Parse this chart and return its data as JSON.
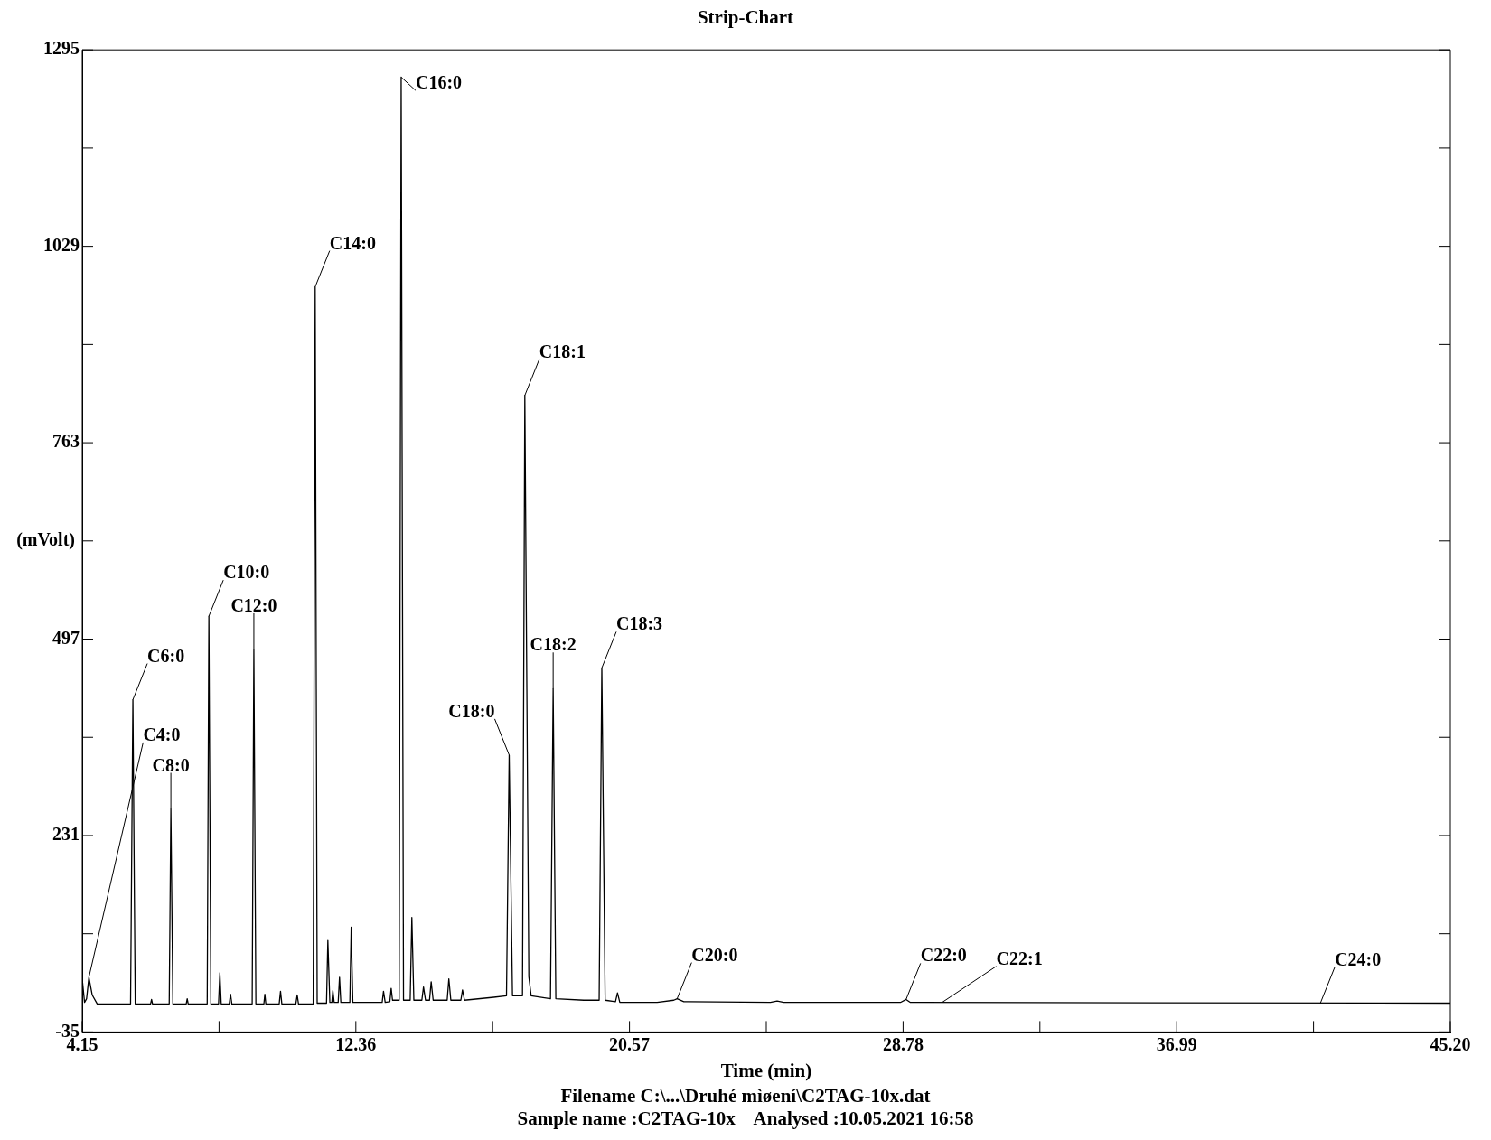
{
  "chart_data": {
    "type": "line",
    "title": "Strip-Chart",
    "xlabel": "Time (min)",
    "ylabel": "(mVolt)",
    "color": "#000000",
    "grid": false,
    "legend": false,
    "marker": "none",
    "line_style": "solid",
    "xlim": [
      4.15,
      45.2
    ],
    "xticks": [
      4.15,
      {
        "value": 8.255,
        "label": null
      },
      12.36,
      {
        "value": 16.465,
        "label": null
      },
      20.57,
      {
        "value": 24.675,
        "label": null
      },
      28.78,
      {
        "value": 32.885,
        "label": null
      },
      36.99,
      {
        "value": 41.095,
        "label": null
      },
      {
        "value": 45.2,
        "label": "45.20"
      }
    ],
    "ylim": [
      -35,
      1295
    ],
    "yticks": [
      -35,
      {
        "value": 98,
        "label": null
      },
      231,
      {
        "value": 364,
        "label": null
      },
      497,
      {
        "value": 630,
        "label": null
      },
      763,
      {
        "value": 896,
        "label": null
      },
      1029,
      {
        "value": 1162,
        "label": null
      },
      1295
    ],
    "x": [
      4.15,
      4.22,
      4.28,
      4.35,
      4.45,
      4.6,
      5.6,
      5.67,
      5.74,
      6.2,
      6.23,
      6.26,
      6.76,
      6.81,
      6.87,
      7.27,
      7.3,
      7.33,
      7.9,
      7.95,
      8.01,
      8.24,
      8.28,
      8.32,
      8.56,
      8.6,
      8.64,
      9.25,
      9.3,
      9.36,
      9.6,
      9.63,
      9.66,
      10.06,
      10.1,
      10.14,
      10.56,
      10.6,
      10.64,
      11.08,
      11.14,
      11.2,
      11.48,
      11.52,
      11.58,
      11.64,
      11.67,
      11.71,
      11.83,
      11.87,
      11.91,
      12.18,
      12.22,
      12.27,
      13.15,
      13.19,
      13.24,
      13.38,
      13.42,
      13.46,
      13.66,
      13.72,
      13.79,
      13.99,
      14.04,
      14.1,
      14.34,
      14.39,
      14.45,
      14.57,
      14.62,
      14.68,
      15.1,
      15.15,
      15.21,
      15.51,
      15.56,
      15.62,
      16.5,
      16.88,
      16.96,
      17.06,
      17.36,
      17.43,
      17.55,
      17.62,
      18.2,
      18.28,
      18.36,
      19.2,
      19.66,
      19.74,
      19.84,
      20.15,
      20.21,
      20.28,
      21.4,
      21.9,
      22.0,
      22.2,
      24.8,
      25.0,
      25.2,
      28.7,
      28.87,
      29.0,
      45.2
    ],
    "values": [
      37,
      5,
      10,
      39,
      15,
      3,
      3,
      415,
      3,
      3,
      9,
      3,
      3,
      267,
      3,
      3,
      10,
      3,
      3,
      528,
      3,
      3,
      45,
      3,
      3,
      16,
      3,
      3,
      483,
      3,
      3,
      16,
      3,
      3,
      20,
      3,
      3,
      15,
      3,
      3,
      974,
      4,
      4,
      89,
      5,
      5,
      21,
      5,
      5,
      39,
      5,
      5,
      107,
      5,
      5,
      20,
      5,
      6,
      24,
      8,
      8,
      1258,
      8,
      8,
      120,
      8,
      8,
      26,
      8,
      8,
      33,
      8,
      8,
      37,
      8,
      8,
      22,
      8,
      12,
      14,
      340,
      14,
      14,
      827,
      40,
      14,
      10,
      430,
      10,
      8,
      8,
      458,
      8,
      6,
      18,
      5,
      5,
      8,
      10,
      6,
      5,
      7,
      5,
      5,
      9,
      5,
      4
    ],
    "annotations": [
      {
        "text": "C4:0",
        "x": 4.35,
        "y": 39
      },
      {
        "text": "C6:0",
        "x": 5.67,
        "y": 415
      },
      {
        "text": "C8:0",
        "x": 6.81,
        "y": 267
      },
      {
        "text": "C10:0",
        "x": 7.95,
        "y": 528
      },
      {
        "text": "C12:0",
        "x": 9.3,
        "y": 483
      },
      {
        "text": "C14:0",
        "x": 11.14,
        "y": 974
      },
      {
        "text": "C16:0",
        "x": 13.72,
        "y": 1258
      },
      {
        "text": "C18:0",
        "x": 16.96,
        "y": 340
      },
      {
        "text": "C18:1",
        "x": 17.43,
        "y": 827
      },
      {
        "text": "C18:2",
        "x": 18.28,
        "y": 430
      },
      {
        "text": "C18:3",
        "x": 19.74,
        "y": 458
      },
      {
        "text": "C20:0",
        "x": 22.0,
        "y": 10
      },
      {
        "text": "C22:0",
        "x": 28.87,
        "y": 9
      },
      {
        "text": "C22:1",
        "x": 29.95,
        "y": 5
      },
      {
        "text": "C24:0",
        "x": 41.3,
        "y": 4
      },
      "Filename C:\\...\\Druhé mìøení\\C2TAG-10x.dat",
      "Sample name :C2TAG-10x    Analysed :10.05.2021 16:58"
    ]
  }
}
